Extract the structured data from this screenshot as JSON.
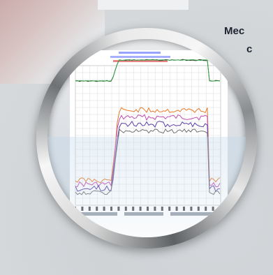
{
  "side_text": {
    "line1": "Mec",
    "line2": "c"
  },
  "chart": {
    "legend_colors": {
      "orange": "#e57a28",
      "purple": "#5a3fa8",
      "magenta": "#c34ab0",
      "green": "#38a84a",
      "gray": "#6e6e6e"
    }
  }
}
